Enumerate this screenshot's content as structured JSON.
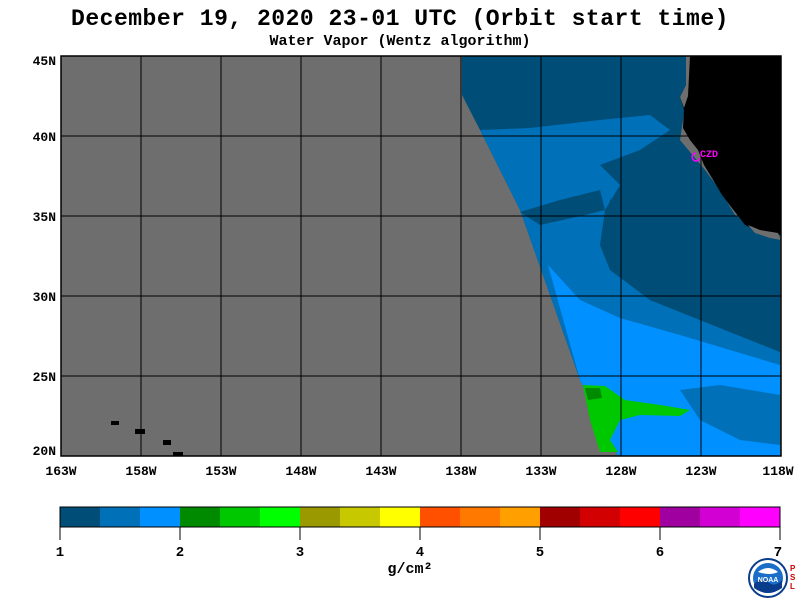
{
  "title": "December 19, 2020  23-01 UTC  (Orbit start time)",
  "subtitle": "Water Vapor (Wentz algorithm)",
  "station_label": "CZD",
  "y_axis_labels": [
    "45N",
    "40N",
    "35N",
    "30N",
    "25N",
    "20N"
  ],
  "x_axis_labels": [
    "163W",
    "158W",
    "153W",
    "148W",
    "143W",
    "138W",
    "133W",
    "128W",
    "123W",
    "118W"
  ],
  "colorbar": {
    "ticks": [
      "1",
      "2",
      "3",
      "4",
      "5",
      "6",
      "7"
    ],
    "units": "g/cm²",
    "colors": [
      "#004e78",
      "#0070b8",
      "#0090ff",
      "#008a00",
      "#00c800",
      "#00ff00",
      "#9a9a00",
      "#c8c800",
      "#ffff00",
      "#ff5000",
      "#ff7800",
      "#ffa000",
      "#a00000",
      "#d20000",
      "#ff0000",
      "#a000a0",
      "#d200d2",
      "#ff00ff"
    ]
  },
  "logo_text": {
    "noaa": "NOAA",
    "psl": "PSL"
  },
  "colors": {
    "missing": "#6e6e6e",
    "land": "#000000",
    "grid": "#000000",
    "station": "#ff00ff",
    "dark": "#004e78",
    "mid": "#0070b8",
    "light": "#0090ff",
    "green": "#00c800"
  }
}
